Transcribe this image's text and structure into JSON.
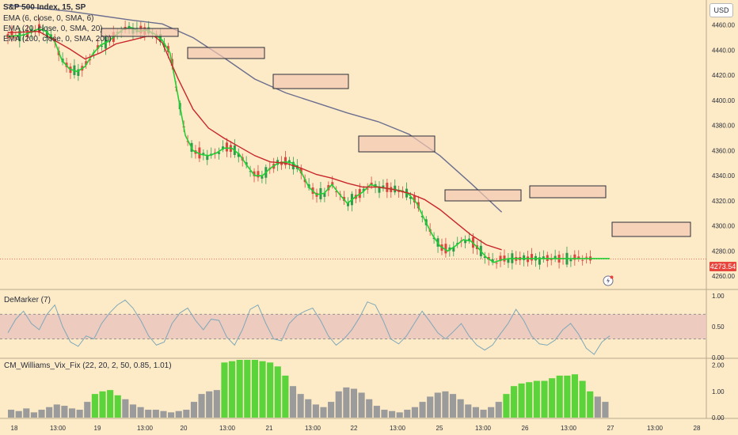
{
  "header": {
    "symbol_title": "S&P 500 Index, 15, SP",
    "indicators": [
      "EMA (6, close, 0, SMA, 6)",
      "EMA (20, close, 0, SMA, 20)",
      "EMA (200, close, 0, SMA, 200)"
    ],
    "currency_button": "USD",
    "last_price": "4273.54"
  },
  "colors": {
    "background": "#fdebc8",
    "ema6": "#22d036",
    "ema20": "#c8262a",
    "ema200": "#6b6e8e",
    "candle_up": "#2d9c4a",
    "candle_down": "#d9473d",
    "demarker_line": "#7fa8b8",
    "demarker_band": "#e9c3bd",
    "vix_green": "#5bd43b",
    "vix_gray": "#9b9b9b",
    "price_tag": "#e8453c"
  },
  "icons": [
    "lightning-alert-icon"
  ],
  "panes": {
    "demarker_label": "DeMarker (7)",
    "vix_label": "CM_Williams_Vix_Fix (22, 20, 2, 50, 0.85, 1.01)"
  },
  "chart_data": [
    {
      "type": "candlestick",
      "title": "S&P 500 Index, 15, SP",
      "x_ticks": [
        "18",
        "13:00",
        "19",
        "13:00",
        "20",
        "13:00",
        "21",
        "13:00",
        "22",
        "13:00",
        "25",
        "13:00",
        "26",
        "13:00",
        "27",
        "13:00",
        "28"
      ],
      "y_ticks": [
        4260,
        4280,
        4300,
        4320,
        4340,
        4360,
        4380,
        4400,
        4420,
        4440,
        4460
      ],
      "ylim": [
        4250,
        4480
      ],
      "series": [
        {
          "name": "EMA (6, close, 0, SMA, 6)",
          "x": [
            0,
            2,
            4,
            5,
            6,
            7,
            8,
            9,
            10,
            11,
            12,
            13,
            14,
            15,
            16,
            17,
            18,
            19,
            20,
            21,
            22,
            23,
            24,
            25,
            26,
            27,
            28,
            29,
            30,
            31,
            32,
            33,
            34,
            35,
            36,
            37,
            38,
            39,
            40,
            41,
            42,
            43,
            44,
            45,
            46,
            47,
            48,
            49,
            50,
            51,
            52,
            53,
            54,
            55,
            56,
            57,
            58,
            59,
            60,
            61,
            62,
            63,
            64,
            65,
            66,
            67,
            68,
            69,
            70,
            71,
            72,
            73,
            74,
            75,
            76,
            77,
            78
          ],
          "values": [
            4451,
            4452,
            4457,
            4455,
            4448,
            4432,
            4425,
            4423,
            4427,
            4437,
            4444,
            4447,
            4452,
            4457,
            4458,
            4455,
            4456,
            4453,
            4448,
            4438,
            4405,
            4372,
            4360,
            4357,
            4356,
            4358,
            4362,
            4362,
            4357,
            4348,
            4340,
            4340,
            4346,
            4350,
            4351,
            4350,
            4343,
            4331,
            4325,
            4326,
            4333,
            4325,
            4318,
            4323,
            4327,
            4333,
            4331,
            4330,
            4329,
            4328,
            4325,
            4318,
            4305,
            4293,
            4284,
            4280,
            4284,
            4289,
            4288,
            4282,
            4275,
            4271,
            4273,
            4274,
            4274,
            4274,
            4274,
            4274,
            4274,
            4274,
            4274,
            4274,
            4274,
            4274,
            4274,
            4274,
            4274
          ]
        },
        {
          "name": "EMA (20, close, 0, SMA, 20)",
          "x": [
            0,
            4,
            8,
            10,
            12,
            14,
            16,
            18,
            19,
            20,
            22,
            24,
            26,
            28,
            30,
            32,
            34,
            36,
            38,
            40,
            42,
            44,
            46,
            48,
            50,
            52,
            54,
            56,
            58,
            60,
            62,
            64
          ],
          "values": [
            4454,
            4455,
            4441,
            4433,
            4438,
            4445,
            4448,
            4451,
            4451,
            4446,
            4418,
            4393,
            4378,
            4370,
            4363,
            4356,
            4351,
            4350,
            4346,
            4341,
            4338,
            4334,
            4331,
            4331,
            4329,
            4326,
            4321,
            4313,
            4303,
            4293,
            4285,
            4281
          ]
        },
        {
          "name": "EMA (200, close, 0, SMA, 200)",
          "x": [
            0,
            8,
            16,
            20,
            24,
            28,
            32,
            36,
            40,
            44,
            48,
            52,
            56,
            60,
            64
          ],
          "values": [
            4476,
            4471,
            4464,
            4461,
            4450,
            4434,
            4417,
            4406,
            4398,
            4390,
            4383,
            4373,
            4356,
            4334,
            4311
          ]
        }
      ],
      "ema200_end_x": 64
    },
    {
      "type": "line",
      "title": "DeMarker (7)",
      "y_ticks": [
        0.0,
        0.5,
        1.0
      ],
      "ylim": [
        0,
        1.05
      ],
      "band": [
        0.3,
        0.7
      ],
      "values": [
        0.4,
        0.62,
        0.75,
        0.55,
        0.45,
        0.7,
        0.85,
        0.5,
        0.25,
        0.18,
        0.35,
        0.3,
        0.55,
        0.72,
        0.85,
        0.93,
        0.8,
        0.6,
        0.35,
        0.2,
        0.25,
        0.55,
        0.72,
        0.8,
        0.6,
        0.45,
        0.62,
        0.6,
        0.33,
        0.2,
        0.45,
        0.78,
        0.85,
        0.55,
        0.3,
        0.27,
        0.55,
        0.68,
        0.75,
        0.8,
        0.6,
        0.35,
        0.2,
        0.3,
        0.45,
        0.65,
        0.9,
        0.85,
        0.6,
        0.3,
        0.22,
        0.35,
        0.55,
        0.75,
        0.58,
        0.4,
        0.3,
        0.42,
        0.55,
        0.35,
        0.2,
        0.12,
        0.2,
        0.38,
        0.55,
        0.78,
        0.6,
        0.35,
        0.22,
        0.2,
        0.28,
        0.45,
        0.55,
        0.38,
        0.15,
        0.05,
        0.25,
        0.35
      ]
    },
    {
      "type": "bar",
      "title": "CM_Williams_Vix_Fix (22, 20, 2, 50, 0.85, 1.01)",
      "y_ticks": [
        0.0,
        1.0,
        2.0
      ],
      "ylim": [
        0,
        2.2
      ],
      "values": [
        0.3,
        0.25,
        0.35,
        0.2,
        0.3,
        0.4,
        0.5,
        0.45,
        0.35,
        0.3,
        0.6,
        0.9,
        1.0,
        1.05,
        0.85,
        0.7,
        0.5,
        0.4,
        0.3,
        0.3,
        0.25,
        0.2,
        0.25,
        0.3,
        0.6,
        0.9,
        1.0,
        1.05,
        2.1,
        2.15,
        2.2,
        2.2,
        2.2,
        2.15,
        2.1,
        1.95,
        1.6,
        1.2,
        0.9,
        0.7,
        0.5,
        0.4,
        0.6,
        1.0,
        1.15,
        1.1,
        0.95,
        0.7,
        0.45,
        0.3,
        0.25,
        0.2,
        0.3,
        0.4,
        0.6,
        0.8,
        0.95,
        1.0,
        0.9,
        0.7,
        0.5,
        0.4,
        0.3,
        0.4,
        0.6,
        0.9,
        1.2,
        1.3,
        1.35,
        1.4,
        1.4,
        1.5,
        1.6,
        1.6,
        1.65,
        1.4,
        1.0,
        0.8,
        0.6
      ],
      "green_ranges": [
        [
          11,
          14
        ],
        [
          28,
          36
        ],
        [
          65,
          76
        ]
      ]
    }
  ]
}
